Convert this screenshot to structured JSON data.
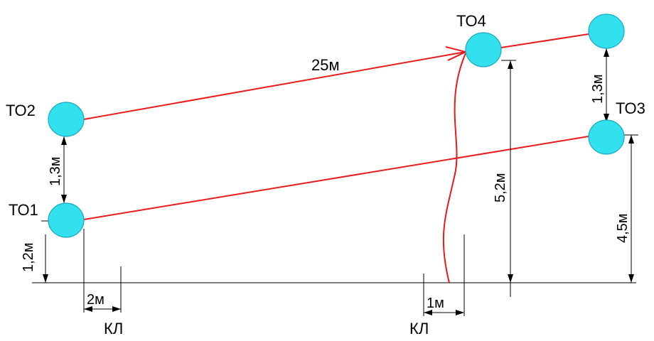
{
  "nodes": {
    "to1": "ТО1",
    "to2": "ТО2",
    "to3": "ТО3",
    "to4": "ТО4"
  },
  "dimensions": {
    "pipe_length": "25м",
    "to2_to1_gap": "1,3м",
    "to1_height": "1,2м",
    "top_right_gap": "1,3м",
    "to4_height": "5,2м",
    "to3_height": "4,5м",
    "left_offset": "2м",
    "right_offset": "1м"
  },
  "cables": {
    "left": "КЛ",
    "right": "КЛ"
  },
  "colors": {
    "node_fill": "#33e0ee",
    "pipe": "#e81a1a",
    "lines": "#000000"
  }
}
